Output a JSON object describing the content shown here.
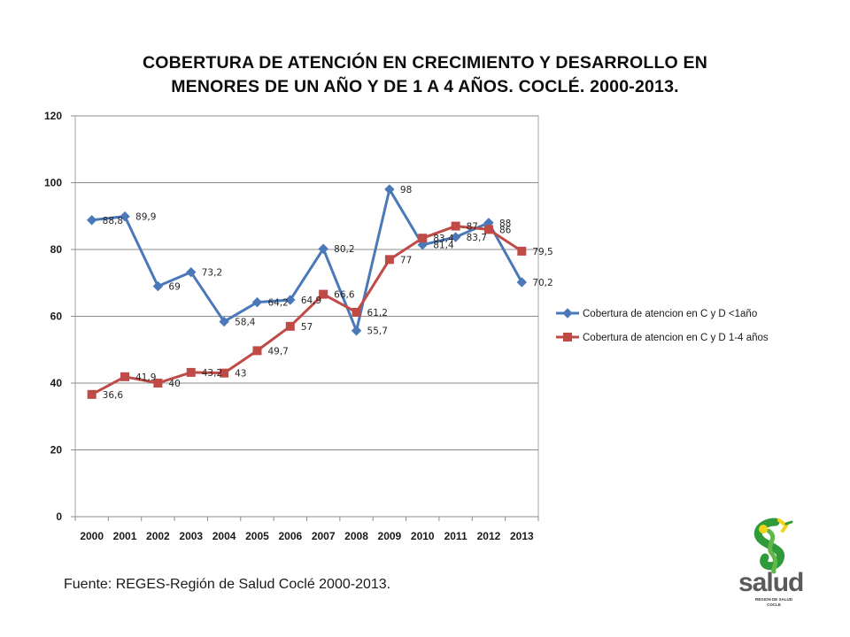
{
  "title_line1": "COBERTURA DE ATENCIÓN EN CRECIMIENTO Y DESARROLLO EN",
  "title_line2": "MENORES DE UN AÑO Y DE 1 A 4 AÑOS. COCLÉ. 2000-2013.",
  "source": "Fuente: REGES-Región de Salud Coclé  2000-2013.",
  "logo": {
    "word": "salud",
    "subline1": "REGION DE SALUD",
    "subline2": "COCLE"
  },
  "chart_data": {
    "type": "line",
    "title": "COBERTURA DE ATENCIÓN EN CRECIMIENTO Y DESARROLLO EN MENORES DE UN AÑO Y DE 1 A 4 AÑOS. COCLÉ. 2000-2013.",
    "xlabel": "",
    "ylabel": "",
    "categories": [
      "2000",
      "2001",
      "2002",
      "2003",
      "2004",
      "2005",
      "2006",
      "2007",
      "2008",
      "2009",
      "2010",
      "2011",
      "2012",
      "2013"
    ],
    "ylim": [
      0,
      120
    ],
    "yticks": [
      0,
      20,
      40,
      60,
      80,
      100,
      120
    ],
    "grid": true,
    "legend_position": "right",
    "series": [
      {
        "name": "Cobertura de atencion en C y D  <1año",
        "color": "#4a78b8",
        "marker": "diamond",
        "values": [
          88.8,
          89.9,
          69,
          73.2,
          58.4,
          64.2,
          64.9,
          80.2,
          55.7,
          98,
          81.4,
          83.7,
          88,
          70.2
        ],
        "labels": [
          "88,8",
          "89,9",
          "69",
          "73,2",
          "58,4",
          "64,2",
          "64,9",
          "80,2",
          "55,7",
          "98",
          "81,4",
          "83,7",
          "88",
          "70,2"
        ]
      },
      {
        "name": "Cobertura de atencion en C y D  1-4 años",
        "color": "#bf4a46",
        "marker": "square",
        "values": [
          36.6,
          41.9,
          40,
          43.2,
          43,
          49.7,
          57,
          66.6,
          61.2,
          77,
          83.4,
          87,
          86,
          79.5
        ],
        "labels": [
          "36,6",
          "41,9",
          "40",
          "43,2",
          "43",
          "49,7",
          "57",
          "66,6",
          "61,2",
          "77",
          "83,4",
          "87",
          "86",
          "79,5"
        ]
      }
    ]
  }
}
